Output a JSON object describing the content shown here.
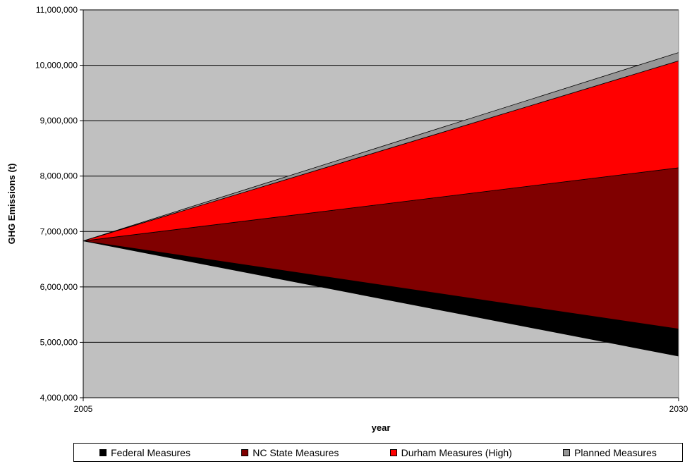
{
  "chart_data": {
    "type": "area",
    "x": [
      "2005",
      "2030"
    ],
    "ylim": [
      4000000,
      11000000
    ],
    "yticks": [
      {
        "value": 4000000,
        "label": "4,000,000"
      },
      {
        "value": 5000000,
        "label": "5,000,000"
      },
      {
        "value": 6000000,
        "label": "6,000,000"
      },
      {
        "value": 7000000,
        "label": "7,000,000"
      },
      {
        "value": 8000000,
        "label": "8,000,000"
      },
      {
        "value": 9000000,
        "label": "9,000,000"
      },
      {
        "value": 10000000,
        "label": "10,000,000"
      },
      {
        "value": 11000000,
        "label": "11,000,000"
      }
    ],
    "xlabel": "year",
    "ylabel": "GHG Emissions (t)",
    "grid": true,
    "legend_position": "bottom",
    "plot_background": "#c0c0c0",
    "series": [
      {
        "name": "Federal Measures",
        "color": "#000000",
        "lower": [
          6830000,
          4750000
        ],
        "upper": [
          6830000,
          5240000
        ]
      },
      {
        "name": "NC State Measures",
        "color": "#800000",
        "lower": [
          6830000,
          5240000
        ],
        "upper": [
          6830000,
          8150000
        ]
      },
      {
        "name": "Durham Measures (High)",
        "color": "#ff0000",
        "lower": [
          6830000,
          8150000
        ],
        "upper": [
          6830000,
          10080000
        ]
      },
      {
        "name": "Planned Measures",
        "color": "#969696",
        "lower": [
          6830000,
          10080000
        ],
        "upper": [
          6830000,
          10230000
        ]
      }
    ]
  }
}
